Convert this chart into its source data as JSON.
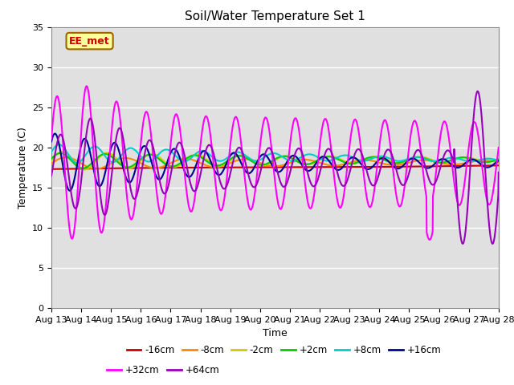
{
  "title": "Soil/Water Temperature Set 1",
  "xlabel": "Time",
  "ylabel": "Temperature (C)",
  "ylim": [
    0,
    35
  ],
  "x_tick_labels": [
    "Aug 13",
    "Aug 14",
    "Aug 15",
    "Aug 16",
    "Aug 17",
    "Aug 18",
    "Aug 19",
    "Aug 20",
    "Aug 21",
    "Aug 22",
    "Aug 23",
    "Aug 24",
    "Aug 25",
    "Aug 26",
    "Aug 27",
    "Aug 28"
  ],
  "yticks": [
    0,
    5,
    10,
    15,
    20,
    25,
    30,
    35
  ],
  "series": [
    {
      "label": "-16cm",
      "color": "#cc0000",
      "lw": 1.5
    },
    {
      "label": "-8cm",
      "color": "#ff8800",
      "lw": 1.5
    },
    {
      "label": "-2cm",
      "color": "#cccc00",
      "lw": 1.5
    },
    {
      "label": "+2cm",
      "color": "#00cc00",
      "lw": 1.5
    },
    {
      "label": "+8cm",
      "color": "#00cccc",
      "lw": 1.5
    },
    {
      "label": "+16cm",
      "color": "#000099",
      "lw": 1.5
    },
    {
      "label": "+32cm",
      "color": "#ff00ff",
      "lw": 1.5
    },
    {
      "label": "+64cm",
      "color": "#9900bb",
      "lw": 1.5
    }
  ],
  "annotation_text": "EE_met",
  "annotation_color": "#cc0000",
  "annotation_bg": "#ffff99",
  "bg_color": "#e0e0e0",
  "title_fontsize": 11,
  "label_fontsize": 9,
  "tick_fontsize": 8
}
